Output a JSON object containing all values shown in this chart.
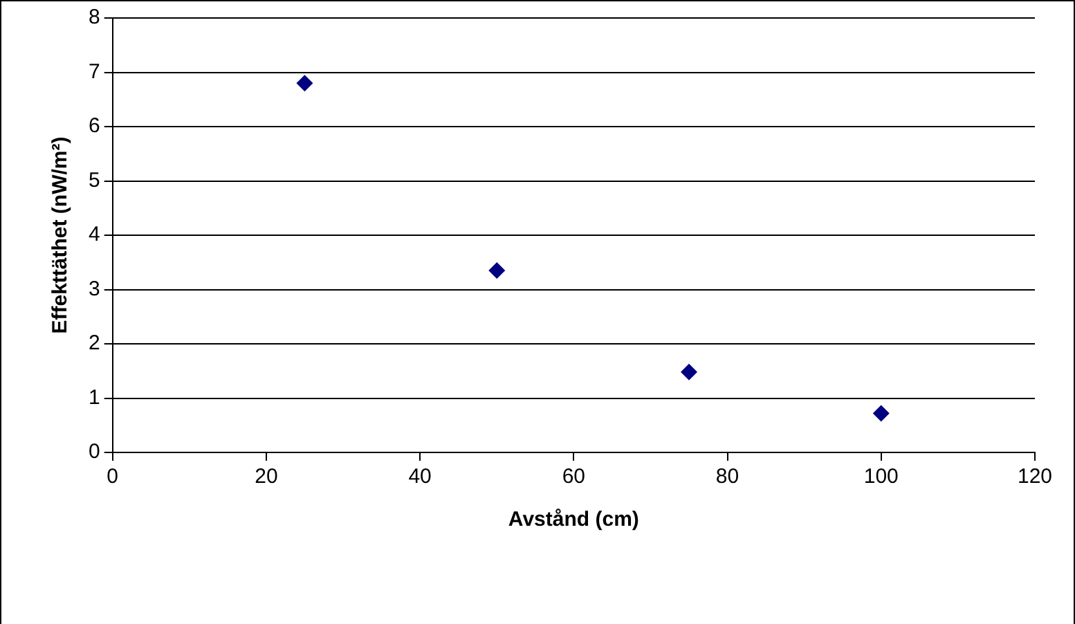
{
  "chart_data": {
    "type": "scatter",
    "xlabel": "Avstånd (cm)",
    "ylabel": "Effekttäthet (nW/m²)",
    "x": [
      25,
      50,
      75,
      100
    ],
    "series": [
      {
        "color": "#000080",
        "values": [
          6.8,
          3.35,
          1.48,
          0.72
        ]
      }
    ],
    "xlim": [
      0,
      120
    ],
    "xticks": [
      0,
      20,
      40,
      60,
      80,
      100,
      120
    ],
    "ylim": [
      0,
      8
    ],
    "yticks": [
      0,
      1,
      2,
      3,
      4,
      5,
      6,
      7,
      8
    ],
    "grid": "y",
    "legend": false,
    "marker": "diamond"
  }
}
